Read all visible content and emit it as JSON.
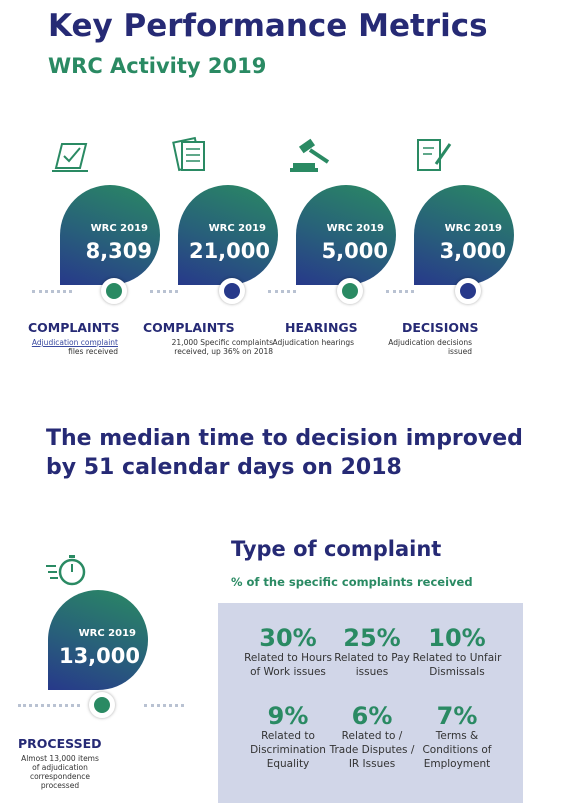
{
  "header": {
    "title": "Key Performance Metrics",
    "subtitle": "WRC Activity 2019"
  },
  "kpis": [
    {
      "label": "WRC 2019",
      "value": "8,309",
      "heading": "COMPLAINTS",
      "desc_link": "Adjudication complaint",
      "desc": "files received"
    },
    {
      "label": "WRC 2019",
      "value": "21,000",
      "heading": "COMPLAINTS",
      "desc": "21,000 Specific complaints received, up 36% on 2018"
    },
    {
      "label": "WRC 2019",
      "value": "5,000",
      "heading": "HEARINGS",
      "desc": "Adjudication hearings"
    },
    {
      "label": "WRC 2019",
      "value": "3,000",
      "heading": "DECISIONS",
      "desc": "Adjudication decisions issued"
    }
  ],
  "headline": "The median time to decision improved by 51 calendar days on  2018",
  "processed": {
    "label": "WRC 2019",
    "value": "13,000",
    "heading": "PROCESSED",
    "desc": "Almost 13,000 items of adjudication correspondence processed"
  },
  "complaint_types": {
    "title": "Type of complaint",
    "subtitle": "% of the specific complaints received",
    "items": [
      {
        "pct": "30%",
        "desc": "Related to Hours of Work issues"
      },
      {
        "pct": "25%",
        "desc": "Related to Pay issues"
      },
      {
        "pct": "10%",
        "desc": "Related to Unfair Dismissals"
      },
      {
        "pct": "9%",
        "desc": "Related to Discrimination Equality"
      },
      {
        "pct": "6%",
        "desc": "Related to / Trade Disputes / IR Issues"
      },
      {
        "pct": "7%",
        "desc": "Terms & Conditions of Employment"
      }
    ]
  }
}
